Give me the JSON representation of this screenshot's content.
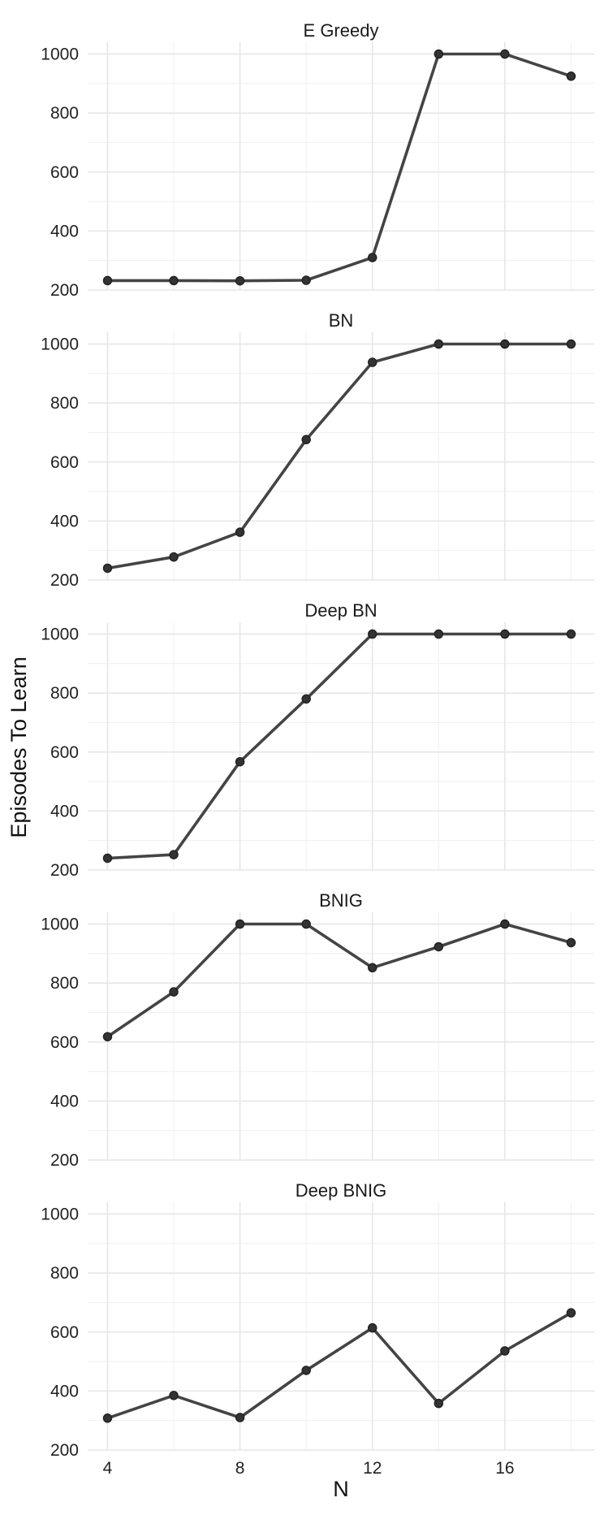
{
  "chart_data": {
    "type": "line",
    "facet": "vertical",
    "xlabel": "N",
    "ylabel": "Episodes To Learn",
    "x": [
      4,
      6,
      8,
      10,
      12,
      14,
      16,
      18
    ],
    "xlim": [
      3.4,
      18.7
    ],
    "ylim": [
      200,
      1040
    ],
    "xticks": [
      4,
      8,
      12,
      16
    ],
    "xtick_labels": [
      "4",
      "8",
      "12",
      "16"
    ],
    "yticks": [
      200,
      400,
      600,
      800,
      1000
    ],
    "ytick_labels": [
      "200",
      "400",
      "600",
      "800",
      "1000"
    ],
    "grid": true,
    "legend": "none",
    "colors": {
      "line": "#444444",
      "point": "#333333",
      "grid": "#e6e6e6"
    },
    "panels": [
      {
        "title": "E Greedy",
        "values": [
          232,
          232,
          231,
          233,
          310,
          1000,
          1000,
          925
        ]
      },
      {
        "title": "BN",
        "values": [
          240,
          278,
          362,
          676,
          938,
          1000,
          1000,
          1000
        ]
      },
      {
        "title": "Deep BN",
        "values": [
          240,
          252,
          567,
          780,
          1000,
          1000,
          1000,
          1000
        ]
      },
      {
        "title": "BNIG",
        "values": [
          618,
          770,
          1000,
          1000,
          852,
          923,
          1000,
          937
        ]
      },
      {
        "title": "Deep BNIG",
        "values": [
          308,
          385,
          310,
          470,
          614,
          358,
          536,
          665
        ]
      }
    ]
  }
}
